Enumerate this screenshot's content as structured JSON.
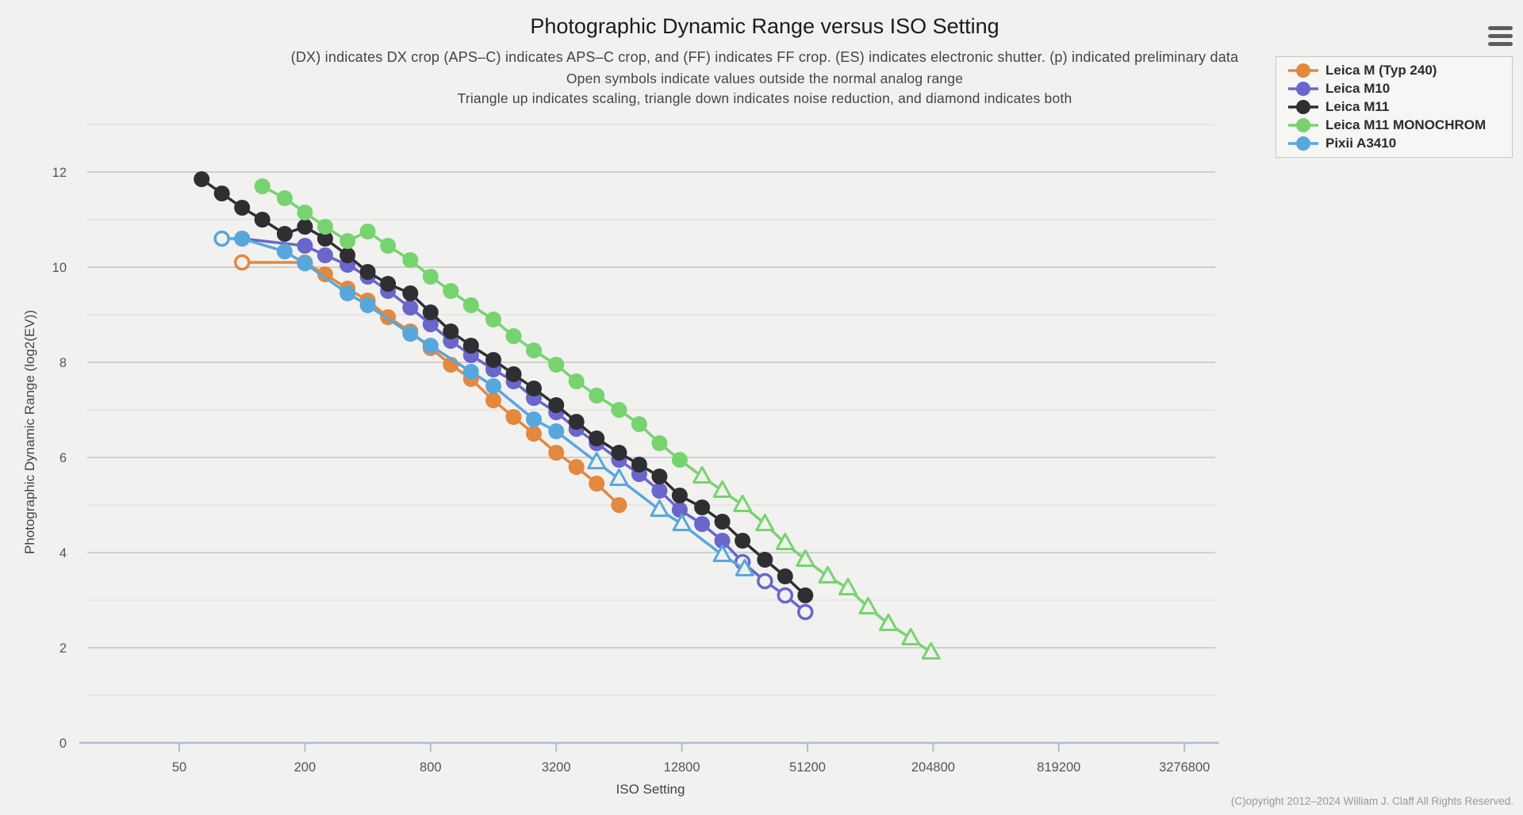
{
  "header": {
    "title": "Photographic Dynamic Range versus ISO Setting",
    "subtitle1": "(DX) indicates DX crop (APS–C) indicates APS–C crop, and (FF) indicates FF crop. (ES) indicates electronic shutter. (p) indicated preliminary data",
    "subtitle2": "Open symbols indicate values outside the normal analog range",
    "subtitle3": "Triangle up indicates scaling, triangle down indicates noise reduction, and diamond indicates both"
  },
  "menu": {
    "icon": "hamburger-icon"
  },
  "footer": {
    "copyright": "(C)opyright 2012–2024 William J. Claff All Rights Reserved."
  },
  "legend": {
    "items": [
      {
        "label": "Leica M (Typ 240)"
      },
      {
        "label": "Leica M10"
      },
      {
        "label": "Leica M11"
      },
      {
        "label": "Leica M11 MONOCHROM"
      },
      {
        "label": "Pixii A3410"
      }
    ]
  },
  "axes": {
    "x_title": "ISO Setting",
    "y_title": "Photographic Dynamic Range (log2(EV))"
  },
  "chart_data": {
    "type": "line",
    "title": "Photographic Dynamic Range versus ISO Setting",
    "xlabel": "ISO Setting",
    "ylabel": "Photographic Dynamic Range (log2(EV))",
    "x_scale": "log2",
    "x_tick_labels": [
      "50",
      "200",
      "800",
      "3200",
      "12800",
      "51200",
      "204800",
      "819200",
      "3276800"
    ],
    "x_tick_values": [
      50,
      200,
      800,
      3200,
      12800,
      51200,
      204800,
      819200,
      3276800
    ],
    "y_ticks": [
      0,
      2,
      4,
      6,
      8,
      10,
      12
    ],
    "ylim": [
      0,
      13
    ],
    "grid": "horizontal",
    "legend_position": "top-right",
    "marker_legend": {
      "circle": "measured value",
      "circle-open": "outside normal analog range",
      "triangle-open": "scaling applied, outside normal analog range"
    },
    "colors": {
      "background": "#f1f1ef",
      "axis_line": "#aebdd0",
      "grid_major": "#c4c4c4",
      "grid_minor": "#dadada",
      "tick_text": "#555555"
    },
    "series": [
      {
        "name": "Leica M (Typ 240)",
        "slug": "leica-m-typ-240",
        "color": "#e2883f",
        "points": [
          {
            "iso": 100,
            "pdr": 10.1,
            "marker": "circle-open"
          },
          {
            "iso": 200,
            "pdr": 10.1,
            "marker": "circle"
          },
          {
            "iso": 250,
            "pdr": 9.85,
            "marker": "circle"
          },
          {
            "iso": 320,
            "pdr": 9.55,
            "marker": "circle"
          },
          {
            "iso": 400,
            "pdr": 9.3,
            "marker": "circle"
          },
          {
            "iso": 500,
            "pdr": 8.95,
            "marker": "circle"
          },
          {
            "iso": 640,
            "pdr": 8.65,
            "marker": "circle"
          },
          {
            "iso": 800,
            "pdr": 8.3,
            "marker": "circle"
          },
          {
            "iso": 1000,
            "pdr": 7.95,
            "marker": "circle"
          },
          {
            "iso": 1250,
            "pdr": 7.65,
            "marker": "circle"
          },
          {
            "iso": 1600,
            "pdr": 7.2,
            "marker": "circle"
          },
          {
            "iso": 2000,
            "pdr": 6.85,
            "marker": "circle"
          },
          {
            "iso": 2500,
            "pdr": 6.5,
            "marker": "circle"
          },
          {
            "iso": 3200,
            "pdr": 6.1,
            "marker": "circle"
          },
          {
            "iso": 4000,
            "pdr": 5.8,
            "marker": "circle"
          },
          {
            "iso": 5000,
            "pdr": 5.45,
            "marker": "circle"
          },
          {
            "iso": 6400,
            "pdr": 5.0,
            "marker": "circle"
          }
        ]
      },
      {
        "name": "Leica M10",
        "slug": "leica-m10",
        "color": "#6966cc",
        "points": [
          {
            "iso": 100,
            "pdr": 10.6,
            "marker": "circle"
          },
          {
            "iso": 200,
            "pdr": 10.45,
            "marker": "circle"
          },
          {
            "iso": 250,
            "pdr": 10.25,
            "marker": "circle"
          },
          {
            "iso": 320,
            "pdr": 10.05,
            "marker": "circle"
          },
          {
            "iso": 400,
            "pdr": 9.8,
            "marker": "circle"
          },
          {
            "iso": 500,
            "pdr": 9.5,
            "marker": "circle"
          },
          {
            "iso": 640,
            "pdr": 9.15,
            "marker": "circle"
          },
          {
            "iso": 800,
            "pdr": 8.8,
            "marker": "circle"
          },
          {
            "iso": 1000,
            "pdr": 8.45,
            "marker": "circle"
          },
          {
            "iso": 1250,
            "pdr": 8.15,
            "marker": "circle"
          },
          {
            "iso": 1600,
            "pdr": 7.85,
            "marker": "circle"
          },
          {
            "iso": 2000,
            "pdr": 7.6,
            "marker": "circle"
          },
          {
            "iso": 2500,
            "pdr": 7.25,
            "marker": "circle"
          },
          {
            "iso": 3200,
            "pdr": 6.95,
            "marker": "circle"
          },
          {
            "iso": 4000,
            "pdr": 6.6,
            "marker": "circle"
          },
          {
            "iso": 5000,
            "pdr": 6.3,
            "marker": "circle"
          },
          {
            "iso": 6400,
            "pdr": 5.95,
            "marker": "circle"
          },
          {
            "iso": 8000,
            "pdr": 5.65,
            "marker": "circle"
          },
          {
            "iso": 10000,
            "pdr": 5.3,
            "marker": "circle"
          },
          {
            "iso": 12500,
            "pdr": 4.9,
            "marker": "circle"
          },
          {
            "iso": 16000,
            "pdr": 4.6,
            "marker": "circle"
          },
          {
            "iso": 20000,
            "pdr": 4.25,
            "marker": "circle"
          },
          {
            "iso": 25000,
            "pdr": 3.8,
            "marker": "circle-open"
          },
          {
            "iso": 32000,
            "pdr": 3.4,
            "marker": "circle-open"
          },
          {
            "iso": 40000,
            "pdr": 3.1,
            "marker": "circle-open"
          },
          {
            "iso": 50000,
            "pdr": 2.75,
            "marker": "circle-open"
          }
        ]
      },
      {
        "name": "Leica M11",
        "slug": "leica-m11",
        "color": "#2f2f33",
        "points": [
          {
            "iso": 64,
            "pdr": 11.85,
            "marker": "circle"
          },
          {
            "iso": 80,
            "pdr": 11.55,
            "marker": "circle"
          },
          {
            "iso": 100,
            "pdr": 11.25,
            "marker": "circle"
          },
          {
            "iso": 125,
            "pdr": 11.0,
            "marker": "circle"
          },
          {
            "iso": 160,
            "pdr": 10.7,
            "marker": "circle"
          },
          {
            "iso": 200,
            "pdr": 10.85,
            "marker": "circle"
          },
          {
            "iso": 250,
            "pdr": 10.6,
            "marker": "circle"
          },
          {
            "iso": 320,
            "pdr": 10.25,
            "marker": "circle"
          },
          {
            "iso": 400,
            "pdr": 9.9,
            "marker": "circle"
          },
          {
            "iso": 500,
            "pdr": 9.65,
            "marker": "circle"
          },
          {
            "iso": 640,
            "pdr": 9.45,
            "marker": "circle"
          },
          {
            "iso": 800,
            "pdr": 9.05,
            "marker": "circle"
          },
          {
            "iso": 1000,
            "pdr": 8.65,
            "marker": "circle"
          },
          {
            "iso": 1250,
            "pdr": 8.35,
            "marker": "circle"
          },
          {
            "iso": 1600,
            "pdr": 8.05,
            "marker": "circle"
          },
          {
            "iso": 2000,
            "pdr": 7.75,
            "marker": "circle"
          },
          {
            "iso": 2500,
            "pdr": 7.45,
            "marker": "circle"
          },
          {
            "iso": 3200,
            "pdr": 7.1,
            "marker": "circle"
          },
          {
            "iso": 4000,
            "pdr": 6.75,
            "marker": "circle"
          },
          {
            "iso": 5000,
            "pdr": 6.4,
            "marker": "circle"
          },
          {
            "iso": 6400,
            "pdr": 6.1,
            "marker": "circle"
          },
          {
            "iso": 8000,
            "pdr": 5.85,
            "marker": "circle"
          },
          {
            "iso": 10000,
            "pdr": 5.6,
            "marker": "circle"
          },
          {
            "iso": 12500,
            "pdr": 5.2,
            "marker": "circle"
          },
          {
            "iso": 16000,
            "pdr": 4.95,
            "marker": "circle"
          },
          {
            "iso": 20000,
            "pdr": 4.65,
            "marker": "circle"
          },
          {
            "iso": 25000,
            "pdr": 4.25,
            "marker": "circle"
          },
          {
            "iso": 32000,
            "pdr": 3.85,
            "marker": "circle"
          },
          {
            "iso": 40000,
            "pdr": 3.5,
            "marker": "circle"
          },
          {
            "iso": 50000,
            "pdr": 3.1,
            "marker": "circle"
          }
        ]
      },
      {
        "name": "Leica M11 MONOCHROM",
        "slug": "leica-m11-monochrom",
        "color": "#77d36f",
        "points": [
          {
            "iso": 125,
            "pdr": 11.7,
            "marker": "circle"
          },
          {
            "iso": 160,
            "pdr": 11.45,
            "marker": "circle"
          },
          {
            "iso": 200,
            "pdr": 11.15,
            "marker": "circle"
          },
          {
            "iso": 250,
            "pdr": 10.85,
            "marker": "circle"
          },
          {
            "iso": 320,
            "pdr": 10.55,
            "marker": "circle"
          },
          {
            "iso": 400,
            "pdr": 10.75,
            "marker": "circle"
          },
          {
            "iso": 500,
            "pdr": 10.45,
            "marker": "circle"
          },
          {
            "iso": 640,
            "pdr": 10.15,
            "marker": "circle"
          },
          {
            "iso": 800,
            "pdr": 9.8,
            "marker": "circle"
          },
          {
            "iso": 1000,
            "pdr": 9.5,
            "marker": "circle"
          },
          {
            "iso": 1250,
            "pdr": 9.2,
            "marker": "circle"
          },
          {
            "iso": 1600,
            "pdr": 8.9,
            "marker": "circle"
          },
          {
            "iso": 2000,
            "pdr": 8.55,
            "marker": "circle"
          },
          {
            "iso": 2500,
            "pdr": 8.25,
            "marker": "circle"
          },
          {
            "iso": 3200,
            "pdr": 7.95,
            "marker": "circle"
          },
          {
            "iso": 4000,
            "pdr": 7.6,
            "marker": "circle"
          },
          {
            "iso": 5000,
            "pdr": 7.3,
            "marker": "circle"
          },
          {
            "iso": 6400,
            "pdr": 7.0,
            "marker": "circle"
          },
          {
            "iso": 8000,
            "pdr": 6.7,
            "marker": "circle"
          },
          {
            "iso": 10000,
            "pdr": 6.3,
            "marker": "circle"
          },
          {
            "iso": 12500,
            "pdr": 5.95,
            "marker": "circle"
          },
          {
            "iso": 16000,
            "pdr": 5.6,
            "marker": "triangle-open"
          },
          {
            "iso": 20000,
            "pdr": 5.3,
            "marker": "triangle-open"
          },
          {
            "iso": 25000,
            "pdr": 5.0,
            "marker": "triangle-open"
          },
          {
            "iso": 32000,
            "pdr": 4.6,
            "marker": "triangle-open"
          },
          {
            "iso": 40000,
            "pdr": 4.2,
            "marker": "triangle-open"
          },
          {
            "iso": 50000,
            "pdr": 3.85,
            "marker": "triangle-open"
          },
          {
            "iso": 64000,
            "pdr": 3.5,
            "marker": "triangle-open"
          },
          {
            "iso": 80000,
            "pdr": 3.25,
            "marker": "triangle-open"
          },
          {
            "iso": 100000,
            "pdr": 2.85,
            "marker": "triangle-open"
          },
          {
            "iso": 125000,
            "pdr": 2.5,
            "marker": "triangle-open"
          },
          {
            "iso": 160000,
            "pdr": 2.2,
            "marker": "triangle-open"
          },
          {
            "iso": 200000,
            "pdr": 1.9,
            "marker": "triangle-open"
          }
        ]
      },
      {
        "name": "Pixii A3410",
        "slug": "pixii-a3410",
        "color": "#58a7dc",
        "points": [
          {
            "iso": 80,
            "pdr": 10.6,
            "marker": "circle-open"
          },
          {
            "iso": 100,
            "pdr": 10.6,
            "marker": "circle"
          },
          {
            "iso": 160,
            "pdr": 10.33,
            "marker": "circle"
          },
          {
            "iso": 200,
            "pdr": 10.08,
            "marker": "circle"
          },
          {
            "iso": 320,
            "pdr": 9.45,
            "marker": "circle"
          },
          {
            "iso": 400,
            "pdr": 9.2,
            "marker": "circle"
          },
          {
            "iso": 640,
            "pdr": 8.6,
            "marker": "circle"
          },
          {
            "iso": 800,
            "pdr": 8.35,
            "marker": "circle"
          },
          {
            "iso": 1250,
            "pdr": 7.8,
            "marker": "circle"
          },
          {
            "iso": 1600,
            "pdr": 7.5,
            "marker": "circle"
          },
          {
            "iso": 2500,
            "pdr": 6.8,
            "marker": "circle"
          },
          {
            "iso": 3200,
            "pdr": 6.55,
            "marker": "circle"
          },
          {
            "iso": 5000,
            "pdr": 5.9,
            "marker": "triangle-open"
          },
          {
            "iso": 6400,
            "pdr": 5.55,
            "marker": "triangle-open"
          },
          {
            "iso": 10000,
            "pdr": 4.9,
            "marker": "triangle-open"
          },
          {
            "iso": 12800,
            "pdr": 4.6,
            "marker": "triangle-open"
          },
          {
            "iso": 20000,
            "pdr": 3.95,
            "marker": "triangle-open"
          },
          {
            "iso": 25600,
            "pdr": 3.65,
            "marker": "triangle-open"
          }
        ]
      }
    ]
  }
}
